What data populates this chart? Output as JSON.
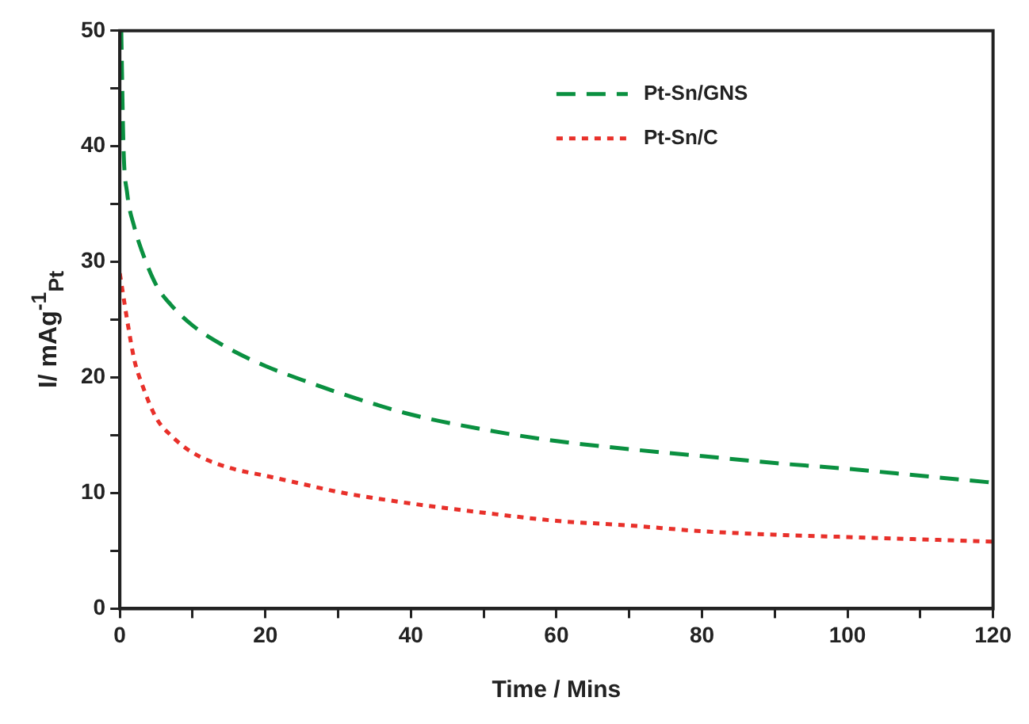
{
  "chart_data": {
    "type": "line",
    "xlabel": "Time / Mins",
    "ylabel": "I/ mAg$^{-1}$$_{Pt}$",
    "xlim": [
      0,
      120
    ],
    "ylim": [
      0,
      50
    ],
    "xticks": [
      0,
      {
        "value": 10,
        "label": null
      },
      20,
      {
        "value": 30,
        "label": null
      },
      40,
      {
        "value": 50,
        "label": null
      },
      60,
      {
        "value": 70,
        "label": null
      },
      80,
      {
        "value": 90,
        "label": null
      },
      100,
      {
        "value": 110,
        "label": null
      },
      120
    ],
    "yticks": [
      0,
      {
        "value": 5,
        "label": null
      },
      10,
      {
        "value": 15,
        "label": null
      },
      20,
      {
        "value": 25,
        "label": null
      },
      30,
      {
        "value": 35,
        "label": null
      },
      40,
      {
        "value": 45,
        "label": null
      },
      50
    ],
    "grid": false,
    "legend": "top right",
    "marker": "none",
    "series": [
      {
        "name": "Pt-Sn/GNS",
        "color": "#0a9040",
        "line_style": "dashed",
        "x": [
          0.2,
          0.5,
          1,
          2,
          3,
          5,
          7,
          10,
          15,
          20,
          25,
          30,
          40,
          50,
          60,
          70,
          80,
          90,
          100,
          110,
          120
        ],
        "values": [
          50,
          40,
          36,
          33,
          31,
          28,
          26.3,
          24.5,
          22.5,
          21,
          19.8,
          18.7,
          16.8,
          15.5,
          14.5,
          13.8,
          13.2,
          12.6,
          12.1,
          11.5,
          10.9
        ]
      },
      {
        "name": "Pt-Sn/C",
        "color": "#e8302a",
        "line_style": "dotted",
        "x": [
          0,
          0.5,
          1,
          2,
          3,
          5,
          7,
          10,
          15,
          20,
          25,
          30,
          40,
          50,
          60,
          70,
          80,
          90,
          100,
          110,
          120
        ],
        "values": [
          29,
          27,
          25,
          21.5,
          19.5,
          16.5,
          15,
          13.5,
          12.2,
          11.5,
          10.8,
          10.1,
          9.1,
          8.3,
          7.6,
          7.2,
          6.7,
          6.4,
          6.2,
          6,
          5.8
        ]
      }
    ]
  }
}
